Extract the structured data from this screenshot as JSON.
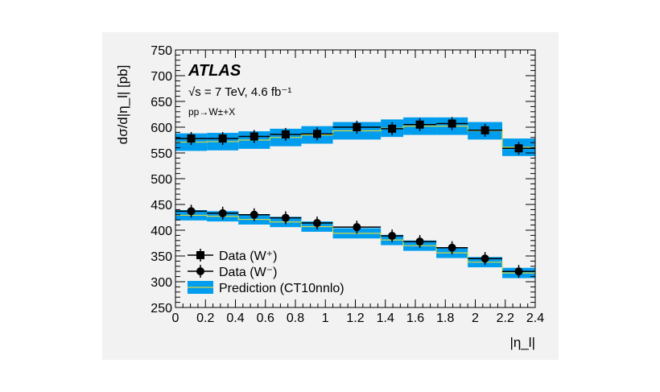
{
  "chart_data": {
    "type": "line",
    "title": "ATLAS",
    "annotations": [
      "√s = 7 TeV, 4.6 fb⁻¹",
      "pp→W±+X"
    ],
    "xlabel": "|η_l|",
    "ylabel": "dσ/d|η_l| [pb]",
    "xlim": [
      0,
      2.4
    ],
    "ylim": [
      250,
      750
    ],
    "xticks": [
      "0",
      "0.2",
      "0.4",
      "0.6",
      "0.8",
      "1",
      "1.2",
      "1.4",
      "1.6",
      "1.8",
      "2",
      "2.2",
      "2.4"
    ],
    "yticks": [
      "250",
      "300",
      "350",
      "400",
      "450",
      "500",
      "550",
      "600",
      "650",
      "700",
      "750"
    ],
    "bin_edges": [
      0,
      0.21,
      0.42,
      0.63,
      0.84,
      1.05,
      1.37,
      1.52,
      1.74,
      1.95,
      2.18,
      2.4
    ],
    "legend_position": "bottom-left",
    "series": [
      {
        "name": "Data (W⁺)",
        "marker": "square",
        "values": [
          578,
          578,
          582,
          586,
          587,
          600,
          597,
          605,
          607,
          594,
          559
        ]
      },
      {
        "name": "Data (W⁻)",
        "marker": "circle",
        "values": [
          437,
          433,
          430,
          424,
          414,
          406,
          389,
          378,
          366,
          345,
          320
        ]
      },
      {
        "name": "Prediction (CT10nnlo)",
        "color": "#009dee",
        "line_color": "#d8d840",
        "wplus": [
          571,
          572,
          575,
          580,
          585,
          593,
          598,
          602,
          602,
          593,
          561
        ],
        "wminus": [
          429,
          427,
          421,
          416,
          407,
          394,
          381,
          370,
          356,
          338,
          317
        ],
        "uncertainty": [
          17,
          10
        ]
      }
    ]
  }
}
